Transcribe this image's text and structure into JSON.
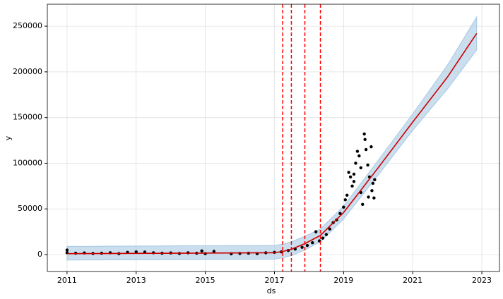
{
  "chart_data": {
    "type": "scatter",
    "xlabel": "ds",
    "ylabel": "y",
    "xlim": [
      2010.43,
      2023.51
    ],
    "ylim": [
      -18500,
      274000
    ],
    "xticks": [
      2011,
      2013,
      2015,
      2017,
      2019,
      2021,
      2023
    ],
    "yticks": [
      0,
      50000,
      100000,
      150000,
      200000,
      250000
    ],
    "grid": true,
    "points": {
      "color": "#000000",
      "x": [
        2011.0,
        2011.0,
        2011.25,
        2011.5,
        2011.75,
        2012.0,
        2012.25,
        2012.5,
        2012.75,
        2013.0,
        2013.25,
        2013.5,
        2013.75,
        2014.0,
        2014.25,
        2014.5,
        2014.75,
        2014.9,
        2015.0,
        2015.25,
        2015.75,
        2016.0,
        2016.25,
        2016.5,
        2016.75,
        2017.0,
        2017.2,
        2017.4,
        2017.6,
        2017.8,
        2017.95,
        2018.1,
        2018.2,
        2018.3,
        2018.4,
        2018.5,
        2018.6,
        2018.7,
        2018.8,
        2018.9,
        2019.0,
        2019.05,
        2019.1,
        2019.15,
        2019.2,
        2019.25,
        2019.3,
        2019.3,
        2019.35,
        2019.4,
        2019.45,
        2019.5,
        2019.5,
        2019.55,
        2019.6,
        2019.62,
        2019.65,
        2019.7,
        2019.72,
        2019.75,
        2019.8,
        2019.82,
        2019.85,
        2019.88,
        2019.9
      ],
      "values": [
        5000,
        2000,
        1500,
        1800,
        1200,
        1500,
        2000,
        1000,
        2500,
        3000,
        2800,
        2000,
        1500,
        1800,
        1200,
        2000,
        1500,
        4000,
        1000,
        3500,
        800,
        1200,
        1500,
        1000,
        2000,
        2500,
        3000,
        4500,
        6000,
        8000,
        10000,
        13000,
        25000,
        15000,
        18000,
        22000,
        28000,
        35000,
        38000,
        45000,
        52000,
        60000,
        65000,
        90000,
        85000,
        75000,
        88000,
        80000,
        100000,
        113000,
        108000,
        95000,
        68000,
        55000,
        132000,
        126000,
        115000,
        98000,
        63000,
        85000,
        118000,
        70000,
        78000,
        62000,
        82000
      ]
    },
    "forecast": {
      "color": "#cc0000",
      "band_color": "#a6c8e3",
      "x": [
        2011,
        2017,
        2017.25,
        2017.5,
        2017.88,
        2018.33,
        2019,
        2020,
        2021,
        2022,
        2022.85
      ],
      "values": [
        1000,
        2000,
        3500,
        6000,
        12000,
        21000,
        46000,
        95000,
        145000,
        194000,
        242000
      ],
      "upper": [
        9000,
        10000,
        11500,
        14000,
        20000,
        28000,
        53000,
        103000,
        154000,
        207000,
        260000
      ],
      "lower": [
        -6000,
        -5000,
        -3500,
        -1000,
        5000,
        14000,
        39000,
        87000,
        136000,
        181000,
        224000
      ]
    },
    "changepoints": {
      "color": "#ff0000",
      "x": [
        2017.24,
        2017.49,
        2017.88,
        2018.33
      ]
    }
  }
}
